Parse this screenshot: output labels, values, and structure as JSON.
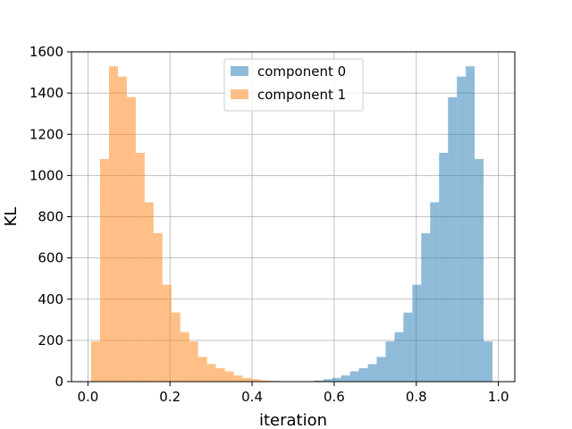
{
  "chart_data": {
    "type": "bar",
    "subtype": "histogram",
    "xlabel": "iteration",
    "ylabel": "KL",
    "xlim": [
      -0.04,
      1.04
    ],
    "ylim": [
      0,
      1600
    ],
    "xticks": [
      0.0,
      0.2,
      0.4,
      0.6,
      0.8,
      1.0
    ],
    "xtick_labels": [
      "0.0",
      "0.2",
      "0.4",
      "0.6",
      "0.8",
      "1.0"
    ],
    "yticks": [
      0,
      200,
      400,
      600,
      800,
      1000,
      1200,
      1400,
      1600
    ],
    "ytick_labels": [
      "0",
      "200",
      "400",
      "600",
      "800",
      "1000",
      "1200",
      "1400",
      "1600"
    ],
    "grid": true,
    "legend_position": "top-center",
    "series": [
      {
        "name": "component 0",
        "color": "#1f77b4",
        "alpha": 0.5,
        "bin_start": 0.53,
        "bin_width": 0.0217,
        "counts": [
          2,
          6,
          12,
          18,
          30,
          50,
          65,
          85,
          120,
          195,
          240,
          335,
          470,
          720,
          870,
          1110,
          1380,
          1480,
          1530,
          1080,
          195
        ]
      },
      {
        "name": "component 1",
        "color": "#ff7f0e",
        "alpha": 0.5,
        "bin_start": 0.008,
        "bin_width": 0.0217,
        "counts": [
          195,
          1080,
          1530,
          1480,
          1380,
          1110,
          870,
          720,
          470,
          335,
          240,
          195,
          120,
          85,
          65,
          50,
          30,
          18,
          12,
          6,
          4,
          2
        ]
      }
    ]
  }
}
